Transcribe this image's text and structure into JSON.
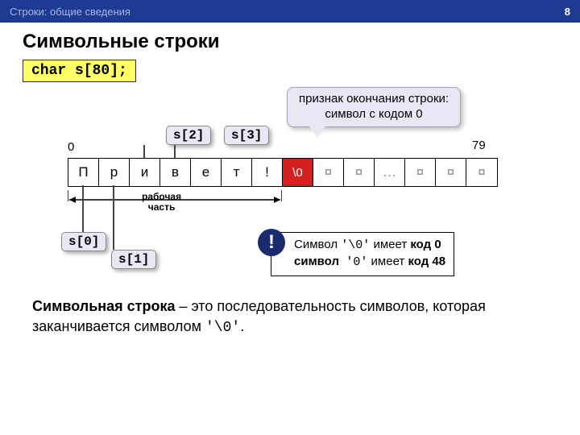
{
  "header": {
    "section": "Строки: общие сведения",
    "page": "8"
  },
  "title": "Символьные строки",
  "declaration": "char s[80];",
  "callout": {
    "line1": "признак окончания строки:",
    "line2": "символ с кодом 0"
  },
  "tags": {
    "s0": "s[0]",
    "s1": "s[1]",
    "s2": "s[2]",
    "s3": "s[3]"
  },
  "indices": {
    "start": "0",
    "end": "79"
  },
  "cells": [
    "П",
    "р",
    "и",
    "в",
    "е",
    "т",
    "!",
    "\\0",
    "¤",
    "¤",
    "…",
    "¤",
    "¤",
    "¤"
  ],
  "term_index": 7,
  "garbage_start": 8,
  "working_label": {
    "l1": "рабочая",
    "l2": "часть"
  },
  "info": {
    "l1_a": "Символ ",
    "l1_code": "'\\0'",
    "l1_b": " имеет ",
    "l1_bold": "код 0",
    "l2_bold1": "символ",
    "l2_code": "'0'",
    "l2_b": "  имеет ",
    "l2_bold2": "код 48"
  },
  "excl": "!",
  "bottom": {
    "bold": "Символьная строка",
    "rest": " – это последовательность символов, которая заканчивается символом ",
    "code": "'\\0'",
    "dot": "."
  },
  "colors": {
    "term_bg": "#d42020",
    "highlight_bg": "#ffff66"
  }
}
